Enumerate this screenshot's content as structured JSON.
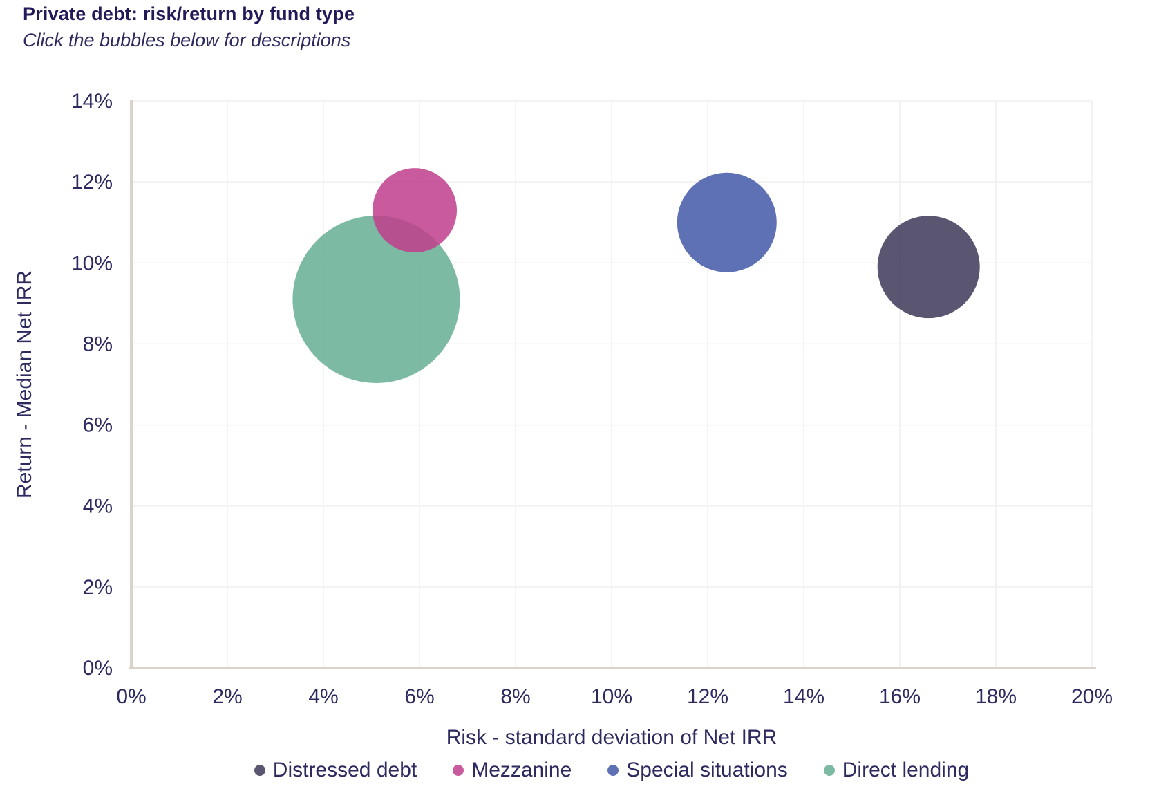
{
  "header": {
    "title": "Private debt: risk/return by fund type",
    "subtitle": "Click the bubbles below for descriptions"
  },
  "chart_data": {
    "type": "scatter",
    "subtype": "bubble",
    "title": "Private debt: risk/return by fund type",
    "x_axis": {
      "label": "Risk - standard deviation of Net IRR",
      "min": 0,
      "max": 20,
      "tick_step": 2,
      "tick_values": [
        0,
        2,
        4,
        6,
        8,
        10,
        12,
        14,
        16,
        18,
        20
      ],
      "tick_labels": [
        "0%",
        "2%",
        "4%",
        "6%",
        "8%",
        "10%",
        "12%",
        "14%",
        "16%",
        "18%",
        "20%"
      ]
    },
    "y_axis": {
      "label": "Return - Median Net IRR",
      "min": 0,
      "max": 14,
      "tick_step": 2,
      "tick_values": [
        0,
        2,
        4,
        6,
        8,
        10,
        12,
        14
      ],
      "tick_labels": [
        "0%",
        "2%",
        "4%",
        "6%",
        "8%",
        "10%",
        "12%",
        "14%"
      ]
    },
    "grid": true,
    "legend_position": "bottom",
    "fill_opacity": 0.85,
    "series": [
      {
        "name": "Direct lending",
        "x": 5.1,
        "y": 9.1,
        "radius_px": 121,
        "color": "#66ae94",
        "rendered_color": "#7dbaa4"
      },
      {
        "name": "Mezzanine",
        "x": 5.9,
        "y": 11.3,
        "radius_px": 61,
        "color": "#bf3d8c",
        "rendered_color": "#c85a9d"
      },
      {
        "name": "Special situations",
        "x": 12.4,
        "y": 11.0,
        "radius_px": 72,
        "color": "#4358a8",
        "rendered_color": "#5f71b5"
      },
      {
        "name": "Distressed debt",
        "x": 16.6,
        "y": 9.9,
        "radius_px": 74,
        "color": "#3d3858",
        "rendered_color": "#5a5671"
      }
    ]
  },
  "legend": {
    "items": [
      {
        "label": "Distressed debt",
        "color": "#5a5671"
      },
      {
        "label": "Mezzanine",
        "color": "#c85a9d"
      },
      {
        "label": "Special situations",
        "color": "#5f71b5"
      },
      {
        "label": "Direct lending",
        "color": "#7dbaa4"
      }
    ]
  },
  "colors": {
    "title_text": "#231a57",
    "body_text": "#2d2a5f",
    "gridline": "#f0eff1",
    "axis_line": "#d9d3c9",
    "background": "#ffffff"
  }
}
